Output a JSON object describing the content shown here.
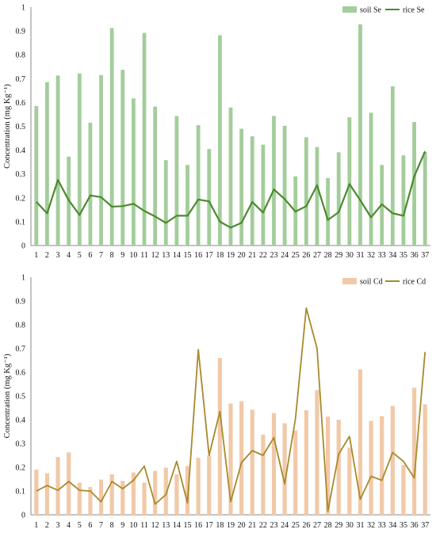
{
  "chart_data": [
    {
      "type": "bar+line",
      "ylabel": "Concentration (mg Kg⁻¹)",
      "ylim": [
        0,
        1
      ],
      "yticks": [
        "0",
        "0.1",
        "0.2",
        "0.3",
        "0.4",
        "0.5",
        "0.6",
        "0.7",
        "0.8",
        "0.9",
        "1"
      ],
      "categories": [
        "1",
        "2",
        "3",
        "4",
        "5",
        "6",
        "7",
        "8",
        "9",
        "10",
        "11",
        "12",
        "13",
        "14",
        "15",
        "16",
        "17",
        "18",
        "19",
        "20",
        "21",
        "22",
        "23",
        "24",
        "25",
        "26",
        "27",
        "28",
        "29",
        "30",
        "31",
        "32",
        "33",
        "34",
        "35",
        "36",
        "37"
      ],
      "grid": false,
      "legend_position": "top-right",
      "series": [
        {
          "name": "soil Se",
          "kind": "bar",
          "color": "#a3cd9b",
          "values": [
            0.585,
            0.685,
            0.713,
            0.373,
            0.722,
            0.515,
            0.715,
            0.912,
            0.737,
            0.617,
            0.892,
            0.583,
            0.358,
            0.543,
            0.338,
            0.505,
            0.405,
            0.882,
            0.579,
            0.49,
            0.458,
            0.423,
            0.543,
            0.502,
            0.29,
            0.454,
            0.413,
            0.283,
            0.391,
            0.538,
            0.928,
            0.557,
            0.338,
            0.668,
            0.378,
            0.518,
            0.392
          ]
        },
        {
          "name": "rice Se",
          "kind": "line",
          "color": "#4c8a2e",
          "values": [
            0.183,
            0.135,
            0.275,
            0.19,
            0.128,
            0.21,
            0.203,
            0.163,
            0.165,
            0.175,
            0.145,
            0.122,
            0.095,
            0.125,
            0.125,
            0.193,
            0.185,
            0.1,
            0.075,
            0.095,
            0.183,
            0.138,
            0.235,
            0.195,
            0.142,
            0.165,
            0.253,
            0.107,
            0.14,
            0.258,
            0.19,
            0.118,
            0.173,
            0.135,
            0.125,
            0.29,
            0.395
          ]
        }
      ]
    },
    {
      "type": "bar+line",
      "ylabel": "Concentration (mg Kg⁻¹)",
      "ylim": [
        0,
        1
      ],
      "yticks": [
        "0",
        "0.1",
        "0.2",
        "0.3",
        "0.4",
        "0.5",
        "0.6",
        "0.7",
        "0.8",
        "0.9",
        "1"
      ],
      "categories": [
        "1",
        "2",
        "3",
        "4",
        "5",
        "6",
        "7",
        "8",
        "9",
        "10",
        "11",
        "12",
        "13",
        "14",
        "15",
        "16",
        "17",
        "18",
        "19",
        "20",
        "21",
        "22",
        "23",
        "24",
        "25",
        "26",
        "27",
        "28",
        "29",
        "30",
        "31",
        "32",
        "33",
        "34",
        "35",
        "36",
        "37"
      ],
      "grid": false,
      "legend_position": "top-right",
      "series": [
        {
          "name": "soil Cd",
          "kind": "bar",
          "color": "#f1c9a8",
          "values": [
            0.19,
            0.175,
            0.243,
            0.262,
            0.135,
            0.117,
            0.148,
            0.17,
            0.143,
            0.178,
            0.135,
            0.185,
            0.198,
            0.17,
            0.205,
            0.24,
            0.25,
            0.66,
            0.468,
            0.478,
            0.442,
            0.337,
            0.428,
            0.385,
            0.355,
            0.44,
            0.525,
            0.413,
            0.4,
            0.282,
            0.612,
            0.395,
            0.415,
            0.458,
            0.21,
            0.535,
            0.465
          ]
        },
        {
          "name": "rice Cd",
          "kind": "line",
          "color": "#a88a2b",
          "values": [
            0.1,
            0.123,
            0.103,
            0.14,
            0.103,
            0.1,
            0.055,
            0.14,
            0.11,
            0.145,
            0.205,
            0.045,
            0.085,
            0.225,
            0.05,
            0.695,
            0.25,
            0.435,
            0.055,
            0.22,
            0.27,
            0.25,
            0.325,
            0.13,
            0.405,
            0.87,
            0.7,
            0.015,
            0.255,
            0.33,
            0.065,
            0.162,
            0.145,
            0.262,
            0.225,
            0.155,
            0.685
          ]
        }
      ]
    }
  ]
}
